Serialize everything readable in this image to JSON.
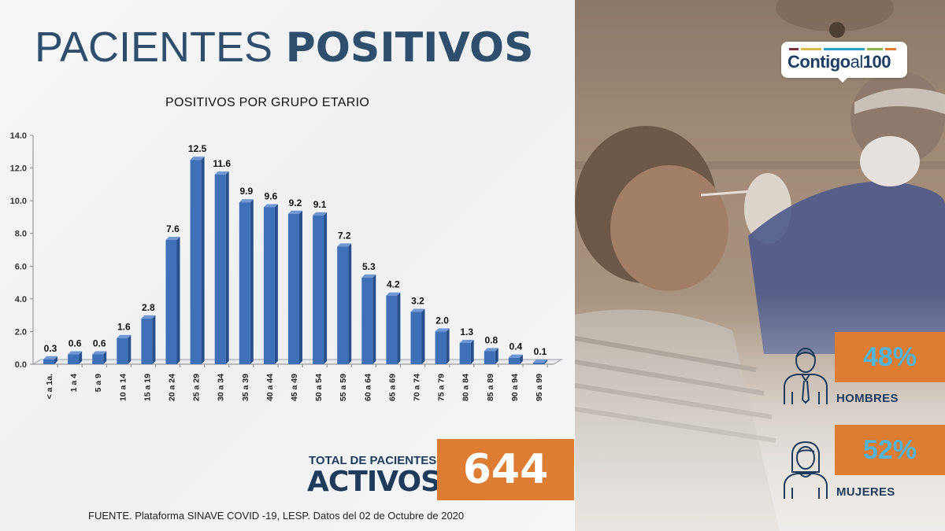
{
  "header": {
    "title_light": "PACIENTES",
    "title_bold": "POSITIVOS"
  },
  "logo": {
    "text_main": "Contigo",
    "text_al": "al",
    "text_num": "100",
    "bar_colors": [
      "#7a2a3a",
      "#d8b94a",
      "#2aa0c4",
      "#8ab34a",
      "#dd7d34"
    ]
  },
  "chart_data": {
    "type": "bar",
    "title": "POSITIVOS POR GRUPO ETARIO",
    "xlabel": "",
    "ylabel": "",
    "ylim": [
      0,
      14
    ],
    "yticks": [
      "0.0",
      "2.0",
      "4.0",
      "6.0",
      "8.0",
      "10.0",
      "12.0",
      "14.0"
    ],
    "categories": [
      "< a 1a.",
      "1 a 4",
      "5 a 9",
      "10 a 14",
      "15 a 19",
      "20 a 24",
      "25 a 29",
      "30 a 34",
      "35 a 39",
      "40 a 44",
      "45 a 49",
      "50 a 54",
      "55 a 59",
      "60 a 64",
      "65 a 69",
      "70 a 74",
      "75 a 79",
      "80 a 84",
      "85 a 89",
      "90 a 94",
      "95 a 99"
    ],
    "values": [
      0.3,
      0.6,
      0.6,
      1.6,
      2.8,
      7.6,
      12.5,
      11.6,
      9.9,
      9.6,
      9.2,
      9.1,
      7.2,
      5.3,
      4.2,
      3.2,
      2.0,
      1.3,
      0.8,
      0.4,
      0.1
    ],
    "value_labels": [
      "0.3",
      "0.6",
      "0.6",
      "1.6",
      "2.8",
      "7.6",
      "12.5",
      "11.6",
      "9.9",
      "9.6",
      "9.2",
      "9.1",
      "7.2",
      "5.3",
      "4.2",
      "3.2",
      "2.0",
      "1.3",
      "0.8",
      "0.4",
      "0.1"
    ],
    "bar_color": "#3f6fb6",
    "grid": false,
    "legend": "none"
  },
  "totals": {
    "label": "TOTAL DE PACIENTES",
    "big_label": "ACTIVOS",
    "value": "644",
    "box_color": "#dd7d34"
  },
  "gender": {
    "men": {
      "percent": "48%",
      "label": "HOMBRES",
      "icon": "man-icon"
    },
    "women": {
      "percent": "52%",
      "label": "MUJERES",
      "icon": "woman-icon"
    }
  },
  "footer": {
    "source": "FUENTE. Plataforma SINAVE COVID -19, LESP. Datos del 02 de Octubre de 2020"
  }
}
